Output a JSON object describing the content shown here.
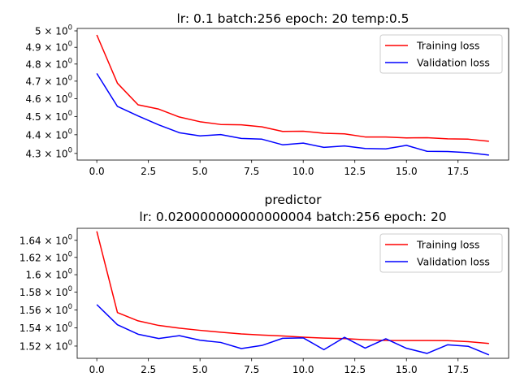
{
  "chart_data": [
    {
      "type": "line",
      "title": "lr: 0.1 batch:256 epoch: 20 temp:0.5",
      "xlabel": "",
      "ylabel": "",
      "xlim": [
        -0.95,
        19.95
      ],
      "ylim": [
        4.265,
        5.015
      ],
      "yscale": "log",
      "x": [
        0,
        1,
        2,
        3,
        4,
        5,
        6,
        7,
        8,
        9,
        10,
        11,
        12,
        13,
        14,
        15,
        16,
        17,
        18,
        19
      ],
      "xticks": [
        0.0,
        2.5,
        5.0,
        7.5,
        10.0,
        12.5,
        15.0,
        17.5
      ],
      "xtick_labels": [
        "0.0",
        "2.5",
        "5.0",
        "7.5",
        "10.0",
        "12.5",
        "15.0",
        "17.5"
      ],
      "yticks": [
        {
          "value": 5.0,
          "base": "5 × 10",
          "exp": "0"
        },
        {
          "value": 4.9,
          "base": "4.9 × 10",
          "exp": "0"
        },
        {
          "value": 4.8,
          "base": "4.8 × 10",
          "exp": "0"
        },
        {
          "value": 4.7,
          "base": "4.7 × 10",
          "exp": "0"
        },
        {
          "value": 4.6,
          "base": "4.6 × 10",
          "exp": "0"
        },
        {
          "value": 4.5,
          "base": "4.5 × 10",
          "exp": "0"
        },
        {
          "value": 4.4,
          "base": "4.4 × 10",
          "exp": "0"
        },
        {
          "value": 4.3,
          "base": "4.3 × 10",
          "exp": "0"
        }
      ],
      "legend_position": "top-right",
      "series": [
        {
          "name": "Training loss",
          "color": "#ff0000",
          "values": [
            4.975,
            4.688,
            4.565,
            4.541,
            4.497,
            4.471,
            4.456,
            4.454,
            4.443,
            4.418,
            4.419,
            4.408,
            4.405,
            4.388,
            4.388,
            4.383,
            4.384,
            4.378,
            4.376,
            4.365
          ]
        },
        {
          "name": "Validation loss",
          "color": "#0000ff",
          "values": [
            4.745,
            4.556,
            4.503,
            4.454,
            4.411,
            4.394,
            4.401,
            4.38,
            4.376,
            4.346,
            4.355,
            4.332,
            4.34,
            4.326,
            4.324,
            4.343,
            4.311,
            4.31,
            4.304,
            4.291
          ]
        }
      ]
    },
    {
      "type": "line",
      "title": "predictor",
      "subtitle": "lr: 0.020000000000000004 batch:256 epoch: 20",
      "xlabel": "",
      "ylabel": "",
      "xlim": [
        -0.95,
        19.95
      ],
      "ylim": [
        1.5067,
        1.6542
      ],
      "yscale": "log",
      "x": [
        0,
        1,
        2,
        3,
        4,
        5,
        6,
        7,
        8,
        9,
        10,
        11,
        12,
        13,
        14,
        15,
        16,
        17,
        18,
        19
      ],
      "xticks": [
        0.0,
        2.5,
        5.0,
        7.5,
        10.0,
        12.5,
        15.0,
        17.5
      ],
      "xtick_labels": [
        "0.0",
        "2.5",
        "5.0",
        "7.5",
        "10.0",
        "12.5",
        "15.0",
        "17.5"
      ],
      "yticks": [
        {
          "value": 1.64,
          "base": "1.64 × 10",
          "exp": "0"
        },
        {
          "value": 1.62,
          "base": "1.62 × 10",
          "exp": "0"
        },
        {
          "value": 1.6,
          "base": "1.6 × 10",
          "exp": "0"
        },
        {
          "value": 1.58,
          "base": "1.58 × 10",
          "exp": "0"
        },
        {
          "value": 1.56,
          "base": "1.56 × 10",
          "exp": "0"
        },
        {
          "value": 1.54,
          "base": "1.54 × 10",
          "exp": "0"
        },
        {
          "value": 1.52,
          "base": "1.52 × 10",
          "exp": "0"
        }
      ],
      "legend_position": "top-right",
      "series": [
        {
          "name": "Training loss",
          "color": "#ff0000",
          "values": [
            1.6506,
            1.557,
            1.5478,
            1.5427,
            1.5397,
            1.5373,
            1.5352,
            1.5333,
            1.5321,
            1.5311,
            1.5297,
            1.5287,
            1.5282,
            1.527,
            1.5262,
            1.5261,
            1.5261,
            1.5259,
            1.5248,
            1.5228
          ]
        },
        {
          "name": "Validation loss",
          "color": "#0000ff",
          "values": [
            1.566,
            1.5435,
            1.533,
            1.5283,
            1.5314,
            1.5264,
            1.524,
            1.5173,
            1.5207,
            1.5285,
            1.529,
            1.5161,
            1.5296,
            1.5178,
            1.528,
            1.5176,
            1.512,
            1.5214,
            1.5197,
            1.5104
          ]
        }
      ]
    }
  ]
}
